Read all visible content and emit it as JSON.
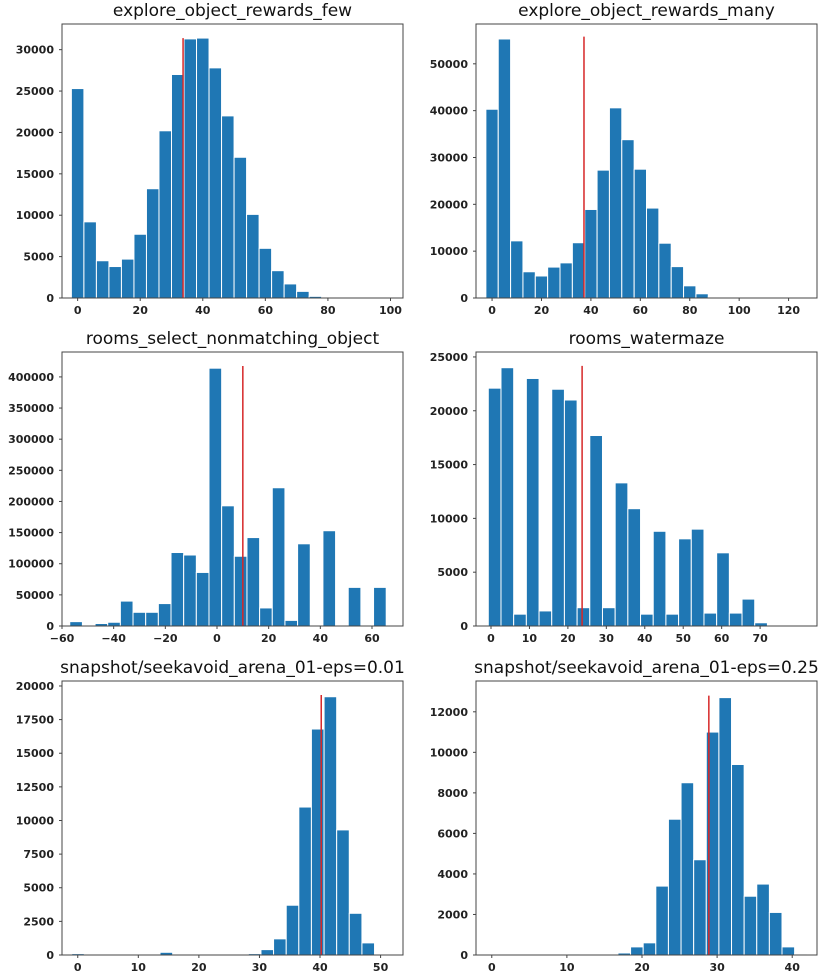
{
  "chart_data": [
    {
      "type": "histogram",
      "title": "explore_object_rewards_few",
      "color": "#1f77b4",
      "bins": [
        -2,
        2,
        6,
        10,
        14,
        18,
        22,
        26,
        30,
        34,
        38,
        42,
        46,
        50,
        54,
        58,
        62,
        66,
        70,
        74,
        78,
        82,
        86,
        90,
        94,
        98
      ],
      "counts": [
        25300,
        9200,
        4500,
        3800,
        4700,
        7700,
        13200,
        20200,
        27000,
        31300,
        31400,
        27800,
        22000,
        17000,
        10100,
        6000,
        3300,
        1700,
        800,
        200,
        50,
        0,
        0,
        0,
        0
      ],
      "xlim": [
        -5,
        104
      ],
      "xticks": [
        0,
        20,
        40,
        60,
        80,
        100
      ],
      "ylim": [
        0,
        33100
      ],
      "yticks": [
        0,
        5000,
        10000,
        15000,
        20000,
        25000,
        30000
      ],
      "mean_line": {
        "x": 33.7,
        "y_top": 31400,
        "color": "#d62728"
      }
    },
    {
      "type": "histogram",
      "title": "explore_object_rewards_many",
      "color": "#1f77b4",
      "bins": [
        -2.5,
        2.5,
        7.5,
        12.5,
        17.5,
        22.5,
        27.5,
        32.5,
        37.5,
        42.5,
        47.5,
        52.5,
        57.5,
        62.5,
        67.5,
        72.5,
        77.5,
        82.5,
        87.5,
        92.5,
        97.5,
        102.5,
        107.5,
        112.5,
        117.5,
        122.5,
        127.5
      ],
      "counts": [
        40300,
        55300,
        12200,
        5600,
        4700,
        6600,
        7500,
        11800,
        18900,
        27300,
        40600,
        33800,
        27500,
        19200,
        11700,
        6700,
        2600,
        900,
        200,
        50,
        0,
        0,
        0,
        0,
        0,
        0
      ],
      "xlim": [
        -6.5,
        131.5
      ],
      "xticks": [
        0,
        20,
        40,
        60,
        80,
        100,
        120
      ],
      "ylim": [
        0,
        58500
      ],
      "yticks": [
        0,
        10000,
        20000,
        30000,
        40000,
        50000
      ],
      "mean_line": {
        "x": 37.2,
        "y_top": 55800,
        "color": "#d62728"
      }
    },
    {
      "type": "histogram",
      "title": "rooms_select_nonmatching_object",
      "color": "#1f77b4",
      "bins": [
        -57,
        -52.1,
        -47.2,
        -42.3,
        -37.4,
        -32.5,
        -27.6,
        -22.7,
        -17.8,
        -12.9,
        -8,
        -3.1,
        1.8,
        6.7,
        11.6,
        16.5,
        21.4,
        26.3,
        31.2,
        36.1,
        41,
        45.9,
        50.8,
        55.7,
        60.6,
        65.5
      ],
      "counts": [
        7000,
        1000,
        4000,
        6000,
        40000,
        22000,
        22000,
        36000,
        118000,
        114000,
        86000,
        414000,
        193000,
        112000,
        142000,
        29000,
        222000,
        9000,
        132000,
        0,
        153000,
        0,
        62000,
        0,
        62000
      ],
      "xlim": [
        -60,
        72
      ],
      "xticks": [
        {
          "value": -60,
          "label": "−60"
        },
        {
          "value": -40,
          "label": "−40"
        },
        {
          "value": -20,
          "label": "−20"
        },
        0,
        20,
        40,
        60
      ],
      "ylim": [
        0,
        440000
      ],
      "yticks": [
        0,
        50000,
        100000,
        150000,
        200000,
        250000,
        300000,
        350000,
        400000
      ],
      "mean_line": {
        "x": 10,
        "y_top": 417600,
        "color": "#d62728"
      }
    },
    {
      "type": "histogram",
      "title": "rooms_watermaze",
      "color": "#1f77b4",
      "bins": [
        -0.7,
        2.6,
        5.9,
        9.2,
        12.5,
        15.8,
        19.1,
        22.4,
        25.7,
        29.0,
        32.3,
        35.6,
        38.9,
        42.2,
        45.5,
        48.8,
        52.1,
        55.4,
        58.7,
        62.0,
        65.3,
        68.6,
        71.9
      ],
      "counts": [
        22100,
        24000,
        1100,
        23000,
        1400,
        22000,
        21000,
        1700,
        17700,
        1700,
        13300,
        10900,
        1100,
        8800,
        1100,
        8100,
        9000,
        1200,
        6800,
        1200,
        2500,
        300
      ],
      "xlim": [
        -3.9,
        84.8
      ],
      "xticks": [
        0,
        10,
        20,
        30,
        40,
        50,
        60,
        70
      ],
      "ylim": [
        0,
        25460
      ],
      "yticks": [
        0,
        5000,
        10000,
        15000,
        20000,
        25000
      ],
      "mean_line": {
        "x": 23.7,
        "y_top": 24170,
        "color": "#d62728"
      }
    },
    {
      "type": "histogram",
      "title": "snapshot/seekavoid_arena_01-eps=0.01",
      "color": "#1f77b4",
      "bins": [
        -1,
        1.08,
        3.17,
        5.25,
        7.33,
        9.42,
        11.5,
        13.58,
        15.67,
        17.75,
        19.83,
        21.92,
        24,
        26.08,
        28.17,
        30.25,
        32.33,
        34.42,
        36.5,
        38.58,
        40.67,
        42.75,
        44.83,
        46.92,
        49
      ],
      "counts": [
        100,
        0,
        0,
        0,
        0,
        0,
        50,
        200,
        0,
        0,
        0,
        0,
        0,
        0,
        100,
        400,
        1200,
        3700,
        11000,
        16800,
        19200,
        9300,
        3100,
        900
      ],
      "xlim": [
        -2.6,
        53.7
      ],
      "xticks": [
        0,
        10,
        20,
        30,
        40,
        50
      ],
      "ylim": [
        0,
        20370
      ],
      "yticks": [
        0,
        2500,
        5000,
        7500,
        10000,
        12500,
        15000,
        17500,
        20000
      ],
      "mean_line": {
        "x": 40.2,
        "y_top": 19330,
        "color": "#d62728"
      }
    },
    {
      "type": "histogram",
      "title": "snapshot/seekavoid_arena_01-eps=0.25",
      "color": "#1f77b4",
      "bins": [
        0,
        1.68,
        3.36,
        5.04,
        6.72,
        8.4,
        10.08,
        11.76,
        13.44,
        15.12,
        16.8,
        18.48,
        20.16,
        21.84,
        23.52,
        25.2,
        26.88,
        28.56,
        30.24,
        31.92,
        33.6,
        35.28,
        36.96,
        38.64,
        40.32,
        42
      ],
      "counts": [
        30,
        0,
        0,
        0,
        0,
        0,
        50,
        0,
        0,
        0,
        100,
        400,
        600,
        3400,
        6700,
        8500,
        4700,
        11000,
        12700,
        9400,
        2900,
        3500,
        2100,
        400,
        50
      ],
      "xlim": [
        -2.1,
        43.3
      ],
      "xticks": [
        0,
        10,
        20,
        30,
        40
      ],
      "ylim": [
        0,
        13520
      ],
      "yticks": [
        0,
        2000,
        4000,
        6000,
        8000,
        10000,
        12000
      ],
      "mean_line": {
        "x": 28.9,
        "y_top": 12800,
        "color": "#d62728"
      }
    }
  ]
}
